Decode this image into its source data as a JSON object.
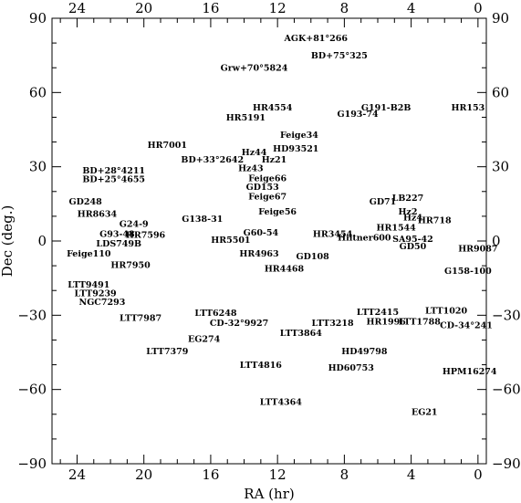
{
  "chart_data": {
    "type": "scatter",
    "xlabel": "RA (hr)",
    "ylabel": "Dec (deg.)",
    "xlim": [
      25.5,
      -0.5
    ],
    "ylim": [
      -90,
      90
    ],
    "xticks": [
      24,
      20,
      16,
      12,
      8,
      4,
      0
    ],
    "yticks": [
      90,
      60,
      30,
      0,
      -30,
      -60,
      -90
    ],
    "xtick_labels": [
      "24",
      "20",
      "16",
      "12",
      "8",
      "4",
      "0"
    ],
    "ytick_labels": [
      "90",
      "60",
      "30",
      "0",
      "−30",
      "−60",
      "−90"
    ],
    "points": [
      {
        "label": "AGK+81°266",
        "x": 9.7,
        "y": 82
      },
      {
        "label": "BD+75°325",
        "x": 8.3,
        "y": 75
      },
      {
        "label": "Grw+70°5824",
        "x": 13.4,
        "y": 70
      },
      {
        "label": "HR4554",
        "x": 12.3,
        "y": 54
      },
      {
        "label": "HR5191",
        "x": 13.9,
        "y": 50
      },
      {
        "label": "G191-B2B",
        "x": 5.5,
        "y": 54
      },
      {
        "label": "G193-74",
        "x": 7.2,
        "y": 51.5
      },
      {
        "label": "HR153",
        "x": 0.6,
        "y": 54
      },
      {
        "label": "Feige34",
        "x": 10.7,
        "y": 43
      },
      {
        "label": "HR7001",
        "x": 18.6,
        "y": 39
      },
      {
        "label": "HD93521",
        "x": 10.9,
        "y": 37.5
      },
      {
        "label": "Hz44",
        "x": 13.4,
        "y": 36
      },
      {
        "label": "Hz21",
        "x": 12.2,
        "y": 33
      },
      {
        "label": "BD+33°2642",
        "x": 15.9,
        "y": 33
      },
      {
        "label": "Hz43",
        "x": 13.6,
        "y": 29.5
      },
      {
        "label": "BD+28°4211",
        "x": 21.8,
        "y": 28.5
      },
      {
        "label": "Feige66",
        "x": 12.6,
        "y": 25.5
      },
      {
        "label": "BD+25°4655",
        "x": 21.8,
        "y": 25
      },
      {
        "label": "GD153",
        "x": 12.9,
        "y": 22
      },
      {
        "label": "Feige67",
        "x": 12.6,
        "y": 18
      },
      {
        "label": "LB227",
        "x": 4.2,
        "y": 17.5
      },
      {
        "label": "GD71",
        "x": 5.7,
        "y": 16
      },
      {
        "label": "GD248",
        "x": 23.5,
        "y": 16
      },
      {
        "label": "Hz2",
        "x": 4.2,
        "y": 12
      },
      {
        "label": "Feige56",
        "x": 12.0,
        "y": 12
      },
      {
        "label": "HR8634",
        "x": 22.8,
        "y": 11
      },
      {
        "label": "Hz4",
        "x": 3.9,
        "y": 9.5
      },
      {
        "label": "HR718",
        "x": 2.6,
        "y": 8.5
      },
      {
        "label": "G138-31",
        "x": 16.5,
        "y": 9
      },
      {
        "label": "G24-9",
        "x": 20.6,
        "y": 7
      },
      {
        "label": "HR1544",
        "x": 4.9,
        "y": 5.5
      },
      {
        "label": "G93-48",
        "x": 21.6,
        "y": 3
      },
      {
        "label": "HR7596",
        "x": 19.9,
        "y": 2.5
      },
      {
        "label": "G60-54",
        "x": 13.0,
        "y": 3.5
      },
      {
        "label": "HR3454",
        "x": 8.7,
        "y": 3
      },
      {
        "label": "Hiltner600",
        "x": 6.8,
        "y": 1.5
      },
      {
        "label": "SA95-42",
        "x": 3.9,
        "y": 1
      },
      {
        "label": "HR5501",
        "x": 14.8,
        "y": 0.5
      },
      {
        "label": "LDS749B",
        "x": 21.5,
        "y": -1
      },
      {
        "label": "GD50",
        "x": 3.9,
        "y": -2
      },
      {
        "label": "HR9087",
        "x": 0.0,
        "y": -3
      },
      {
        "label": "Feige110",
        "x": 23.3,
        "y": -5
      },
      {
        "label": "HR4963",
        "x": 13.1,
        "y": -5
      },
      {
        "label": "GD108",
        "x": 9.9,
        "y": -6
      },
      {
        "label": "HR7950",
        "x": 20.8,
        "y": -9.5
      },
      {
        "label": "HR4468",
        "x": 11.6,
        "y": -11
      },
      {
        "label": "G158-100",
        "x": 0.6,
        "y": -12
      },
      {
        "label": "LTT9491",
        "x": 23.3,
        "y": -17.5
      },
      {
        "label": "LTT9239",
        "x": 22.9,
        "y": -21
      },
      {
        "label": "NGC7293",
        "x": 22.5,
        "y": -24.5
      },
      {
        "label": "LTT1020",
        "x": 1.9,
        "y": -28
      },
      {
        "label": "LTT6248",
        "x": 15.7,
        "y": -29
      },
      {
        "label": "LTT2415",
        "x": 6.0,
        "y": -28.5
      },
      {
        "label": "LTT7987",
        "x": 20.2,
        "y": -31
      },
      {
        "label": "HR1996",
        "x": 5.5,
        "y": -32.5
      },
      {
        "label": "LTT1788",
        "x": 3.5,
        "y": -32.5
      },
      {
        "label": "CD-32°9927",
        "x": 14.3,
        "y": -33
      },
      {
        "label": "LTT3218",
        "x": 8.7,
        "y": -33
      },
      {
        "label": "CD-34°241",
        "x": 0.7,
        "y": -34
      },
      {
        "label": "LTT3864",
        "x": 10.6,
        "y": -37
      },
      {
        "label": "EG274",
        "x": 16.4,
        "y": -39.5
      },
      {
        "label": "LTT7379",
        "x": 18.6,
        "y": -44.5
      },
      {
        "label": "HD49798",
        "x": 6.8,
        "y": -44.5
      },
      {
        "label": "LTT4816",
        "x": 13.0,
        "y": -50
      },
      {
        "label": "HD60753",
        "x": 7.6,
        "y": -51
      },
      {
        "label": "HPM16274",
        "x": 0.5,
        "y": -52.5
      },
      {
        "label": "LTT4364",
        "x": 11.8,
        "y": -65
      },
      {
        "label": "EG21",
        "x": 3.2,
        "y": -69
      }
    ]
  }
}
